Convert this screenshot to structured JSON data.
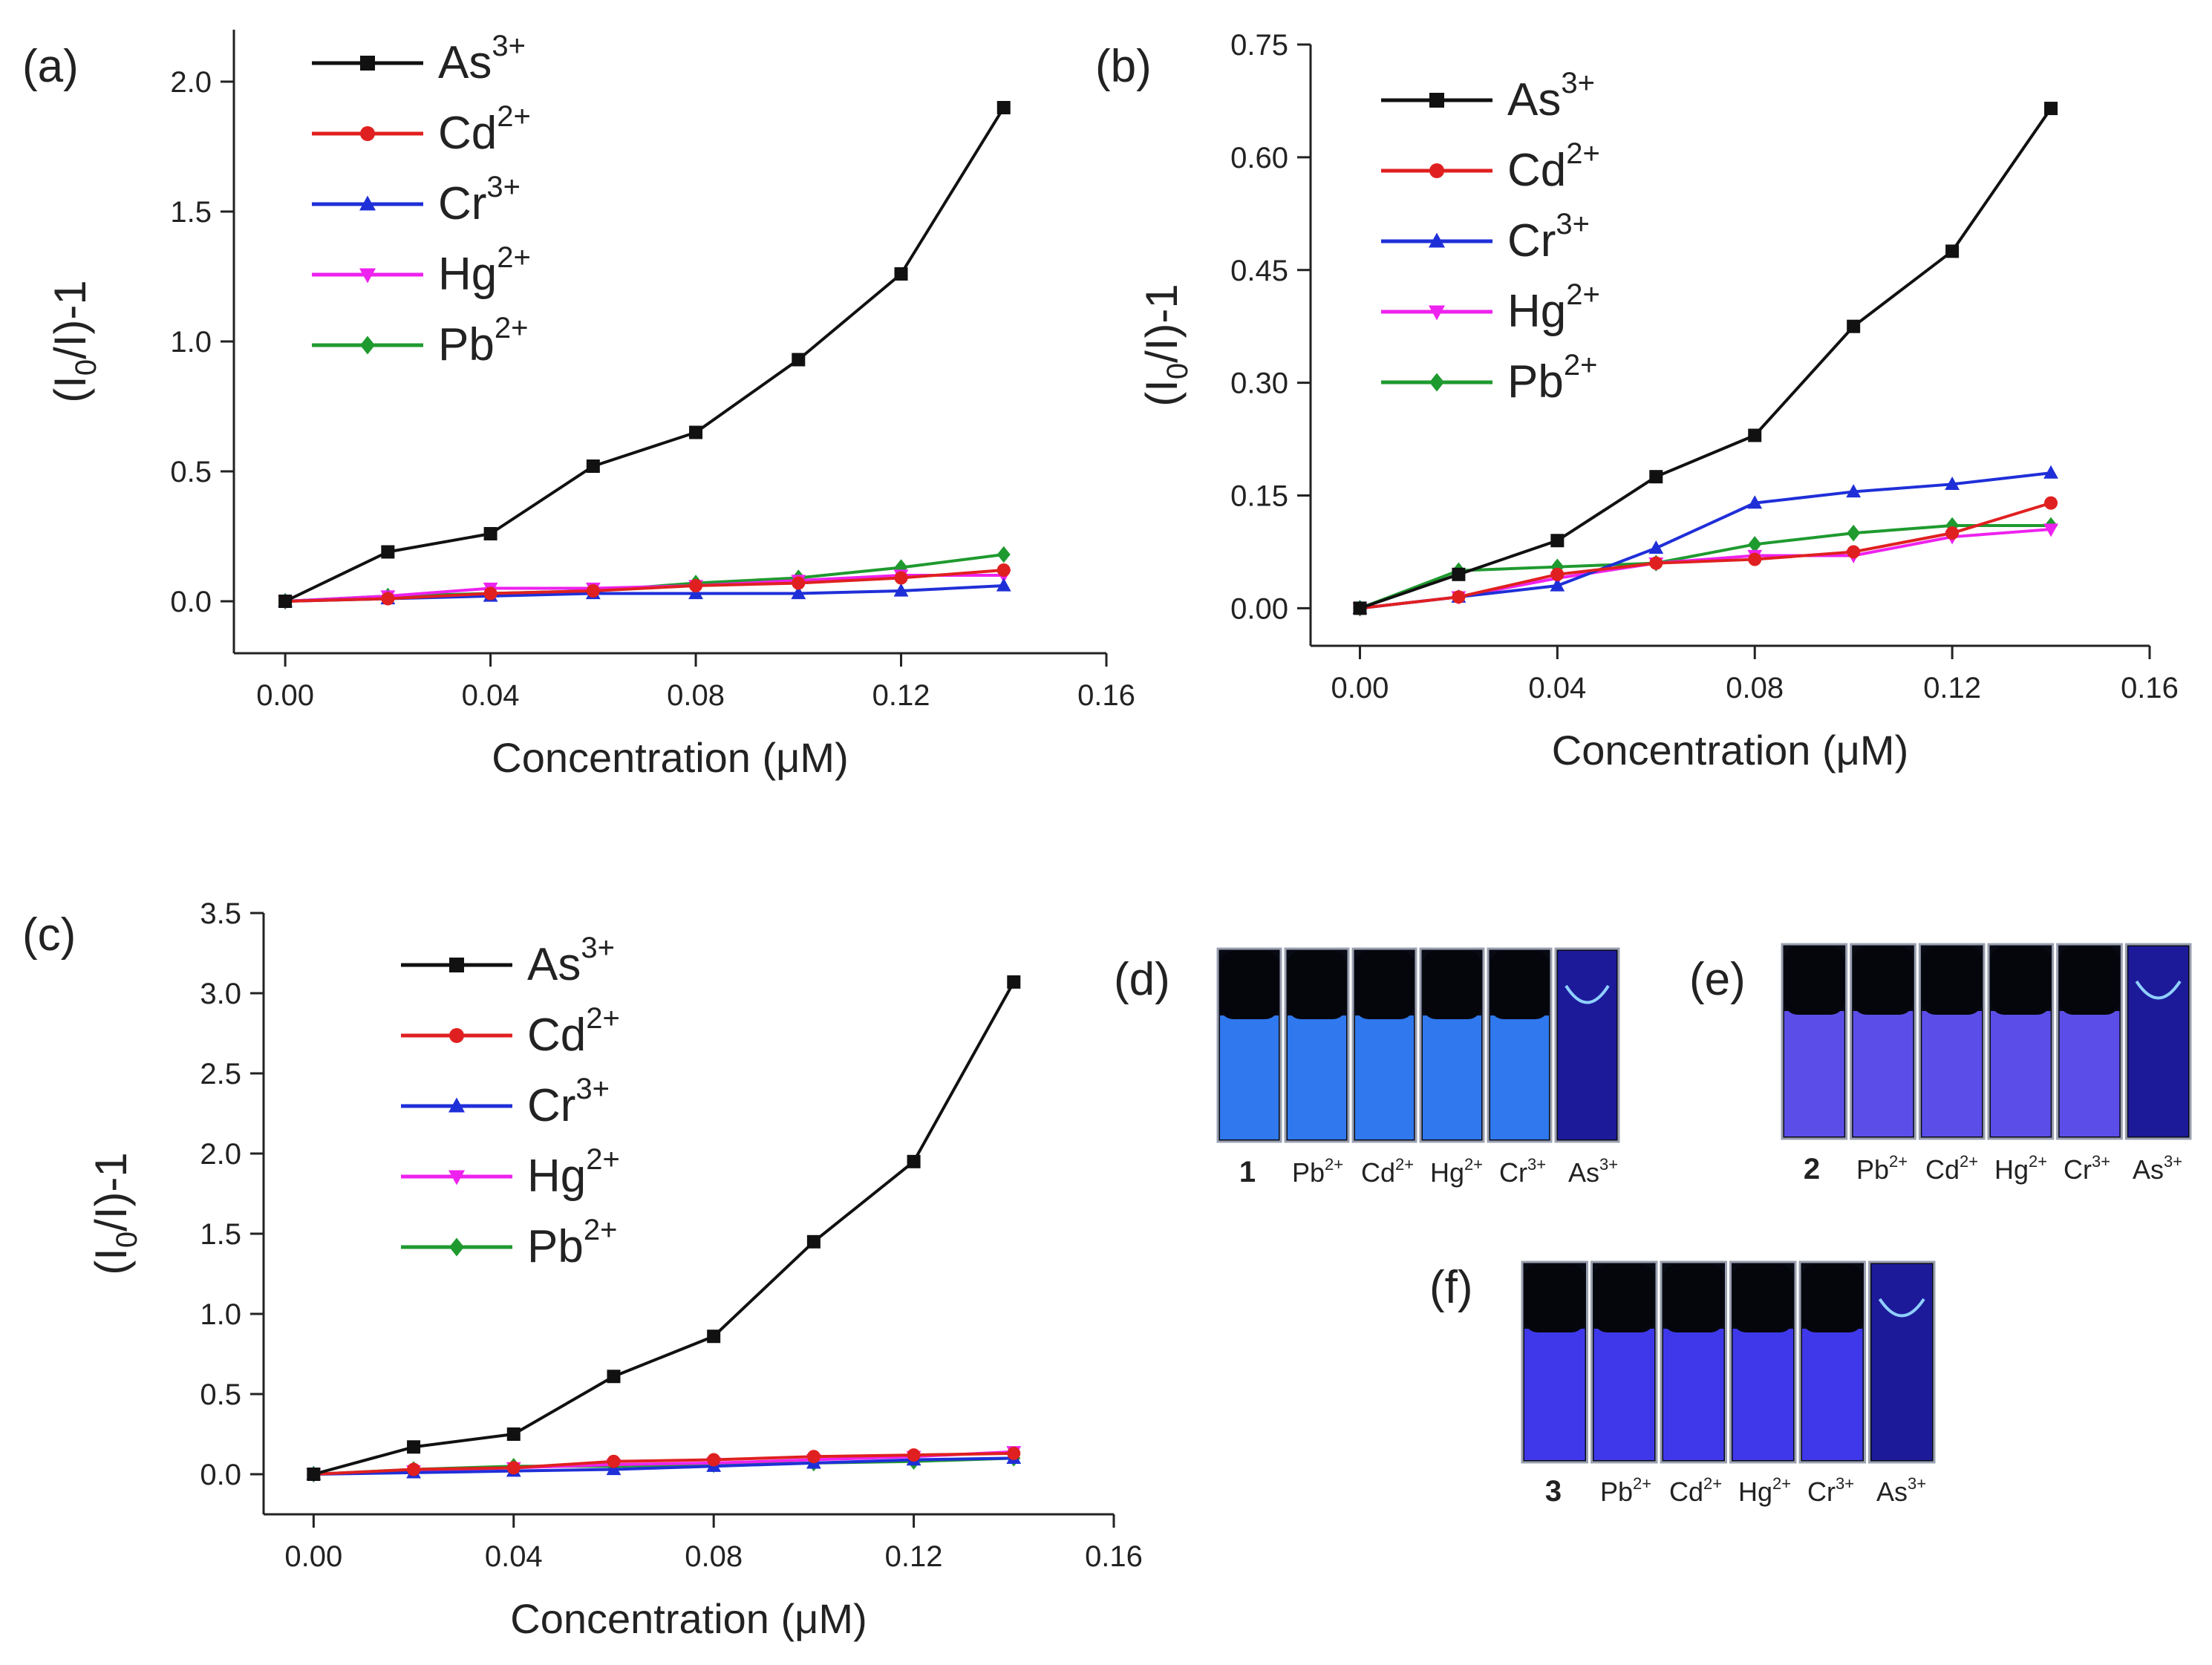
{
  "series_style": {
    "As3+": {
      "color": "#111111",
      "marker": "square"
    },
    "Cd2+": {
      "color": "#e02020",
      "marker": "circle"
    },
    "Cr3+": {
      "color": "#1f2fd8",
      "marker": "triangle-up"
    },
    "Hg2+": {
      "color": "#ee22ee",
      "marker": "triangle-down"
    },
    "Pb2+": {
      "color": "#1f9a2f",
      "marker": "diamond"
    }
  },
  "chart_data": [
    {
      "type": "line",
      "panel_label": "(a)",
      "xlabel": "Concentration (μM)",
      "ylabel": "(I0/I)-1",
      "xlim": [
        -0.01,
        0.16
      ],
      "ylim": [
        -0.2,
        2.2
      ],
      "x_ticks": [
        "0.00",
        "0.04",
        "0.08",
        "0.12",
        "0.16"
      ],
      "y_ticks": [
        "0.0",
        "0.5",
        "1.0",
        "1.5",
        "2.0"
      ],
      "x": [
        0.0,
        0.02,
        0.04,
        0.06,
        0.08,
        0.1,
        0.12,
        0.14
      ],
      "series": [
        {
          "name": "As3+",
          "ion": "As",
          "charge": "3+",
          "values": [
            0.0,
            0.19,
            0.26,
            0.52,
            0.65,
            0.93,
            1.26,
            1.9
          ]
        },
        {
          "name": "Cd2+",
          "ion": "Cd",
          "charge": "2+",
          "values": [
            0.0,
            0.01,
            0.03,
            0.04,
            0.06,
            0.07,
            0.09,
            0.12
          ]
        },
        {
          "name": "Cr3+",
          "ion": "Cr",
          "charge": "3+",
          "values": [
            0.0,
            0.01,
            0.02,
            0.03,
            0.03,
            0.03,
            0.04,
            0.06
          ]
        },
        {
          "name": "Hg2+",
          "ion": "Hg",
          "charge": "2+",
          "values": [
            0.0,
            0.02,
            0.05,
            0.05,
            0.06,
            0.08,
            0.1,
            0.1
          ]
        },
        {
          "name": "Pb2+",
          "ion": "Pb",
          "charge": "2+",
          "values": [
            0.0,
            0.02,
            0.03,
            0.04,
            0.07,
            0.09,
            0.13,
            0.18
          ]
        }
      ]
    },
    {
      "type": "line",
      "panel_label": "(b)",
      "xlabel": "Concentration (μM)",
      "ylabel": "(I0/I)-1",
      "xlim": [
        -0.01,
        0.16
      ],
      "ylim": [
        -0.05,
        0.75
      ],
      "x_ticks": [
        "0.00",
        "0.04",
        "0.08",
        "0.12",
        "0.16"
      ],
      "y_ticks": [
        "0.00",
        "0.15",
        "0.30",
        "0.45",
        "0.60",
        "0.75"
      ],
      "x": [
        0.0,
        0.02,
        0.04,
        0.06,
        0.08,
        0.1,
        0.12,
        0.14
      ],
      "series": [
        {
          "name": "As3+",
          "ion": "As",
          "charge": "3+",
          "values": [
            0.0,
            0.045,
            0.09,
            0.175,
            0.23,
            0.375,
            0.475,
            0.665
          ]
        },
        {
          "name": "Cd2+",
          "ion": "Cd",
          "charge": "2+",
          "values": [
            0.0,
            0.015,
            0.045,
            0.06,
            0.065,
            0.075,
            0.1,
            0.14
          ]
        },
        {
          "name": "Cr3+",
          "ion": "Cr",
          "charge": "3+",
          "values": [
            0.0,
            0.015,
            0.03,
            0.08,
            0.14,
            0.155,
            0.165,
            0.18
          ]
        },
        {
          "name": "Hg2+",
          "ion": "Hg",
          "charge": "2+",
          "values": [
            0.0,
            0.015,
            0.04,
            0.06,
            0.07,
            0.07,
            0.095,
            0.105
          ]
        },
        {
          "name": "Pb2+",
          "ion": "Pb",
          "charge": "2+",
          "values": [
            0.0,
            0.05,
            0.055,
            0.06,
            0.085,
            0.1,
            0.11,
            0.11
          ]
        }
      ]
    },
    {
      "type": "line",
      "panel_label": "(c)",
      "xlabel": "Concentration (μM)",
      "ylabel": "(I0/I)-1",
      "xlim": [
        -0.01,
        0.16
      ],
      "ylim": [
        -0.25,
        3.5
      ],
      "x_ticks": [
        "0.00",
        "0.04",
        "0.08",
        "0.12",
        "0.16"
      ],
      "y_ticks": [
        "0.0",
        "0.5",
        "1.0",
        "1.5",
        "2.0",
        "2.5",
        "3.0",
        "3.5"
      ],
      "x": [
        0.0,
        0.02,
        0.04,
        0.06,
        0.08,
        0.1,
        0.12,
        0.14
      ],
      "series": [
        {
          "name": "As3+",
          "ion": "As",
          "charge": "3+",
          "values": [
            0.0,
            0.17,
            0.25,
            0.61,
            0.86,
            1.45,
            1.95,
            3.07
          ]
        },
        {
          "name": "Cd2+",
          "ion": "Cd",
          "charge": "2+",
          "values": [
            0.0,
            0.03,
            0.04,
            0.08,
            0.09,
            0.11,
            0.12,
            0.13
          ]
        },
        {
          "name": "Cr3+",
          "ion": "Cr",
          "charge": "3+",
          "values": [
            0.0,
            0.01,
            0.02,
            0.03,
            0.05,
            0.07,
            0.09,
            0.1
          ]
        },
        {
          "name": "Hg2+",
          "ion": "Hg",
          "charge": "2+",
          "values": [
            0.0,
            0.02,
            0.04,
            0.06,
            0.07,
            0.09,
            0.11,
            0.14
          ]
        },
        {
          "name": "Pb2+",
          "ion": "Pb",
          "charge": "2+",
          "values": [
            0.0,
            0.03,
            0.05,
            0.05,
            0.06,
            0.07,
            0.08,
            0.1
          ]
        }
      ]
    }
  ],
  "photos": [
    {
      "panel_label": "(d)",
      "number": "1",
      "liquid_color": "#2f78ee",
      "labels": [
        {
          "ion": "Pb",
          "charge": "2+"
        },
        {
          "ion": "Cd",
          "charge": "2+"
        },
        {
          "ion": "Hg",
          "charge": "2+"
        },
        {
          "ion": "Cr",
          "charge": "3+"
        },
        {
          "ion": "As",
          "charge": "3+"
        }
      ]
    },
    {
      "panel_label": "(e)",
      "number": "2",
      "liquid_color": "#5b4ee8",
      "labels": [
        {
          "ion": "Pb",
          "charge": "2+"
        },
        {
          "ion": "Cd",
          "charge": "2+"
        },
        {
          "ion": "Hg",
          "charge": "2+"
        },
        {
          "ion": "Cr",
          "charge": "3+"
        },
        {
          "ion": "As",
          "charge": "3+"
        }
      ]
    },
    {
      "panel_label": "(f)",
      "number": "3",
      "liquid_color": "#3e38ea",
      "labels": [
        {
          "ion": "Pb",
          "charge": "2+"
        },
        {
          "ion": "Cd",
          "charge": "2+"
        },
        {
          "ion": "Hg",
          "charge": "2+"
        },
        {
          "ion": "Cr",
          "charge": "3+"
        },
        {
          "ion": "As",
          "charge": "3+"
        }
      ]
    }
  ]
}
